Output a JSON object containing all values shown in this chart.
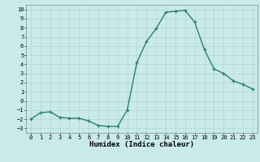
{
  "x": [
    0,
    1,
    2,
    3,
    4,
    5,
    6,
    7,
    8,
    9,
    10,
    11,
    12,
    13,
    14,
    15,
    16,
    17,
    18,
    19,
    20,
    21,
    22,
    23
  ],
  "y": [
    -2.0,
    -1.3,
    -1.2,
    -1.8,
    -1.9,
    -1.9,
    -2.2,
    -2.7,
    -2.8,
    -2.8,
    -1.0,
    4.2,
    6.5,
    7.9,
    9.7,
    9.8,
    9.9,
    8.6,
    5.6,
    3.5,
    3.0,
    2.2,
    1.8,
    1.3
  ],
  "line_color": "#2e7d6e",
  "marker": "+",
  "marker_size": 3,
  "bg_color": "#c8eae8",
  "grid_color": "#b5d5d2",
  "xlabel": "Humidex (Indice chaleur)",
  "xlim": [
    -0.5,
    23.5
  ],
  "ylim": [
    -3.5,
    10.5
  ],
  "yticks": [
    -3,
    -2,
    -1,
    0,
    1,
    2,
    3,
    4,
    5,
    6,
    7,
    8,
    9,
    10
  ],
  "xticks": [
    0,
    1,
    2,
    3,
    4,
    5,
    6,
    7,
    8,
    9,
    10,
    11,
    12,
    13,
    14,
    15,
    16,
    17,
    18,
    19,
    20,
    21,
    22,
    23
  ],
  "tick_fontsize": 5,
  "xlabel_fontsize": 6.5,
  "line_width": 1.0
}
